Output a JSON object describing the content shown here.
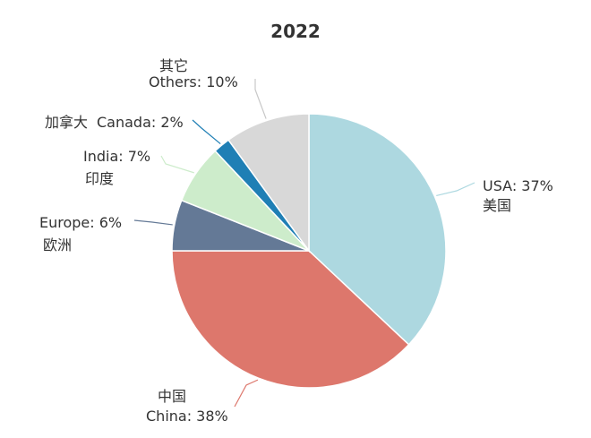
{
  "chart_data": {
    "type": "pie",
    "title": "2022",
    "legend": "none",
    "slices": [
      {
        "label_en": "USA: 37%",
        "label_zh": "美国",
        "value": 37,
        "color": "#add8e0"
      },
      {
        "label_en": "China: 38%",
        "label_zh": "中国",
        "value": 38,
        "color": "#dd776c"
      },
      {
        "label_en": "Europe: 6%",
        "label_zh": "欧洲",
        "value": 6,
        "color": "#647996"
      },
      {
        "label_en": "India: 7%",
        "label_zh": "印度",
        "value": 7,
        "color": "#cdeccb"
      },
      {
        "label_en": "Canada: 2%",
        "label_zh": "加拿大",
        "value": 2,
        "color": "#1f7fb5"
      },
      {
        "label_en": "Others: 10%",
        "label_zh": "其它",
        "value": 10,
        "color": "#d8d8d8"
      }
    ]
  }
}
